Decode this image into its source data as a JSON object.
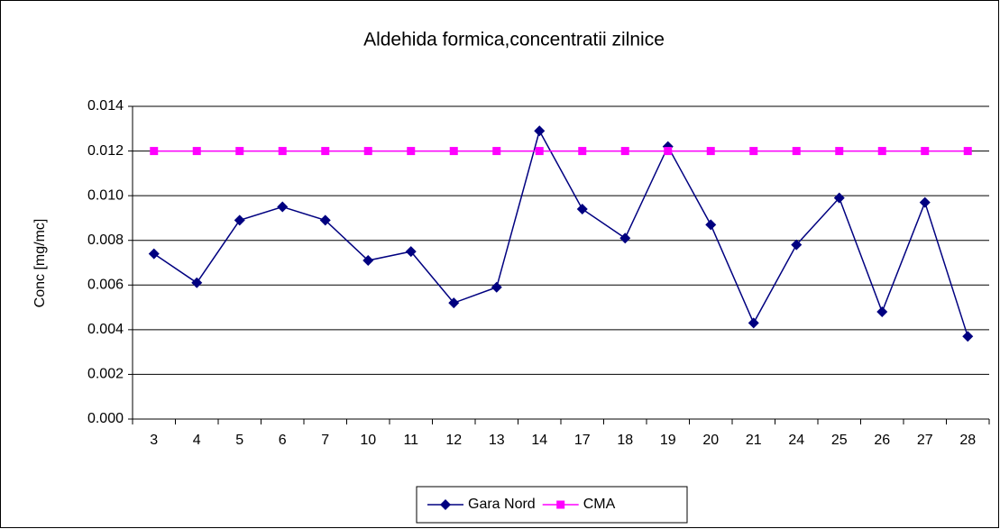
{
  "chart_data": {
    "type": "line",
    "title": "Aldehida formica,concentratii zilnice",
    "y_label": "Conc [mg/mc]",
    "categories": [
      "3",
      "4",
      "5",
      "6",
      "7",
      "10",
      "11",
      "12",
      "13",
      "14",
      "17",
      "18",
      "19",
      "20",
      "21",
      "24",
      "25",
      "26",
      "27",
      "28"
    ],
    "series": [
      {
        "name": "Gara Nord",
        "color": "#000080",
        "marker": "diamond",
        "values": [
          0.0074,
          0.0061,
          0.0089,
          0.0095,
          0.0089,
          0.0071,
          0.0075,
          0.0052,
          0.0059,
          0.0129,
          0.0094,
          0.0081,
          0.0122,
          0.0087,
          0.0043,
          0.0078,
          0.0099,
          0.0048,
          0.0097,
          0.0037
        ]
      },
      {
        "name": "CMA",
        "color": "#ff00ff",
        "marker": "square",
        "values": [
          0.012,
          0.012,
          0.012,
          0.012,
          0.012,
          0.012,
          0.012,
          0.012,
          0.012,
          0.012,
          0.012,
          0.012,
          0.012,
          0.012,
          0.012,
          0.012,
          0.012,
          0.012,
          0.012,
          0.012
        ]
      }
    ],
    "ylim": [
      0,
      0.014
    ],
    "yticks": [
      {
        "value": 0,
        "label": "0.000"
      },
      {
        "value": 0.002,
        "label": "0.002"
      },
      {
        "value": 0.004,
        "label": "0.004"
      },
      {
        "value": 0.006,
        "label": "0.006"
      },
      {
        "value": 0.008,
        "label": "0.008"
      },
      {
        "value": 0.01,
        "label": "0.010"
      },
      {
        "value": 0.012,
        "label": "0.012"
      },
      {
        "value": 0.014,
        "label": "0.014"
      }
    ],
    "grid": true,
    "legend": "bottom"
  }
}
